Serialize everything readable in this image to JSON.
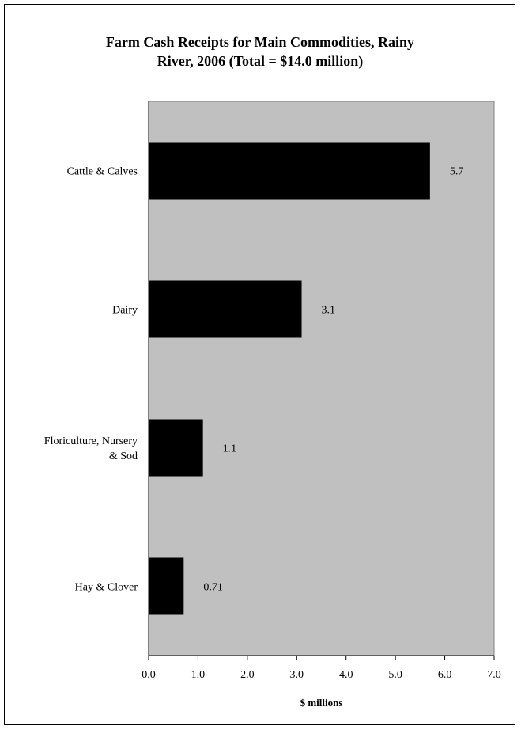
{
  "chart_data": {
    "type": "bar",
    "orientation": "horizontal",
    "title": [
      "Farm Cash Receipts for Main Commodities, Rainy",
      "River, 2006 (Total = $14.0 million)"
    ],
    "xlabel": "$ millions",
    "ylabel": "",
    "categories": [
      [
        "Cattle & Calves"
      ],
      [
        "Dairy"
      ],
      [
        "Floriculture, Nursery",
        "& Sod"
      ],
      [
        "Hay & Clover"
      ]
    ],
    "values": [
      5.7,
      3.1,
      1.1,
      0.71
    ],
    "data_labels": [
      "5.7",
      "3.1",
      "1.1",
      "0.71"
    ],
    "xlim": [
      0,
      7
    ],
    "ticks": [
      "0.0",
      "1.0",
      "2.0",
      "3.0",
      "4.0",
      "5.0",
      "6.0",
      "7.0"
    ],
    "grid": false,
    "legend": "none",
    "colors": {
      "bar": "#000000",
      "plot_area": "#c0c0c0",
      "background": "#ffffff"
    }
  }
}
